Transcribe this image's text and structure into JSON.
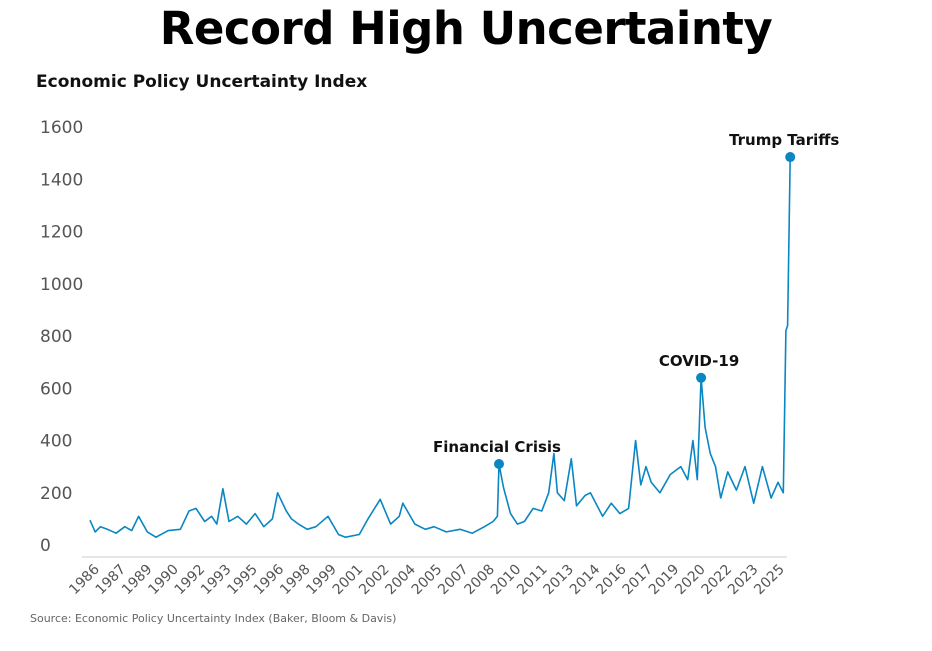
{
  "chart_data": {
    "type": "line",
    "title": "Record High Uncertainty",
    "ylabel": "Economic Policy Uncertainty Index",
    "xlabel": "",
    "source": "Source: Economic Policy Uncertainty Index (Baker, Bloom & Davis)",
    "ylim": [
      0,
      1600
    ],
    "xlim": [
      1985,
      2025
    ],
    "yticks": [
      0,
      200,
      400,
      600,
      800,
      1000,
      1200,
      1400,
      1600
    ],
    "xtick_labels": [
      "1986",
      "1987",
      "1989",
      "1990",
      "1992",
      "1993",
      "1995",
      "1996",
      "1998",
      "1999",
      "2001",
      "2002",
      "2004",
      "2005",
      "2007",
      "2008",
      "2010",
      "2011",
      "2013",
      "2014",
      "2016",
      "2017",
      "2019",
      "2020",
      "2022",
      "2023",
      "2025"
    ],
    "grid": false,
    "color": "#0a86c2",
    "series": [
      {
        "name": "Economic Policy Uncertainty Index",
        "x": [
          1985.0,
          1985.3,
          1985.6,
          1986.0,
          1986.5,
          1987.0,
          1987.4,
          1987.8,
          1988.3,
          1988.8,
          1989.5,
          1990.2,
          1990.7,
          1991.1,
          1991.6,
          1992.0,
          1992.3,
          1992.65,
          1993.0,
          1993.5,
          1994.0,
          1994.5,
          1995.0,
          1995.5,
          1995.8,
          1996.3,
          1996.6,
          1997.0,
          1997.5,
          1998.0,
          1998.7,
          1999.3,
          1999.7,
          2000.5,
          2001.0,
          2001.7,
          2002.3,
          2002.8,
          2003.0,
          2003.7,
          2004.3,
          2004.8,
          2005.5,
          2006.3,
          2007.0,
          2007.7,
          2008.2,
          2008.45,
          2008.54,
          2008.8,
          2009.2,
          2009.6,
          2010.0,
          2010.5,
          2011.0,
          2011.4,
          2011.7,
          2011.9,
          2012.3,
          2012.7,
          2013.0,
          2013.5,
          2013.8,
          2014.5,
          2015.0,
          2015.5,
          2016.0,
          2016.4,
          2016.7,
          2017.0,
          2017.3,
          2017.8,
          2018.4,
          2019.0,
          2019.4,
          2019.7,
          2019.95,
          2020.17,
          2020.4,
          2020.7,
          2021.0,
          2021.3,
          2021.7,
          2022.2,
          2022.7,
          2023.2,
          2023.7,
          2024.2,
          2024.6,
          2024.9,
          2025.05,
          2025.15,
          2025.3
        ],
        "y": [
          95,
          50,
          70,
          60,
          45,
          70,
          55,
          110,
          50,
          30,
          55,
          60,
          130,
          140,
          90,
          110,
          80,
          215,
          90,
          110,
          80,
          120,
          70,
          100,
          200,
          130,
          100,
          80,
          60,
          70,
          110,
          40,
          30,
          40,
          100,
          175,
          80,
          110,
          160,
          80,
          60,
          70,
          50,
          60,
          45,
          70,
          90,
          110,
          310,
          220,
          120,
          80,
          90,
          140,
          130,
          200,
          350,
          200,
          170,
          330,
          150,
          190,
          200,
          110,
          160,
          120,
          140,
          400,
          230,
          300,
          240,
          200,
          270,
          300,
          250,
          400,
          250,
          640,
          450,
          350,
          300,
          180,
          280,
          210,
          300,
          160,
          300,
          180,
          240,
          200,
          820,
          840,
          1485
        ]
      }
    ],
    "annotations": [
      {
        "label": "Financial Crisis",
        "x": 2008.54,
        "y": 310
      },
      {
        "label": "COVID-19",
        "x": 2020.17,
        "y": 640
      },
      {
        "label": "Trump Tariffs",
        "x": 2025.3,
        "y": 1485
      }
    ]
  }
}
